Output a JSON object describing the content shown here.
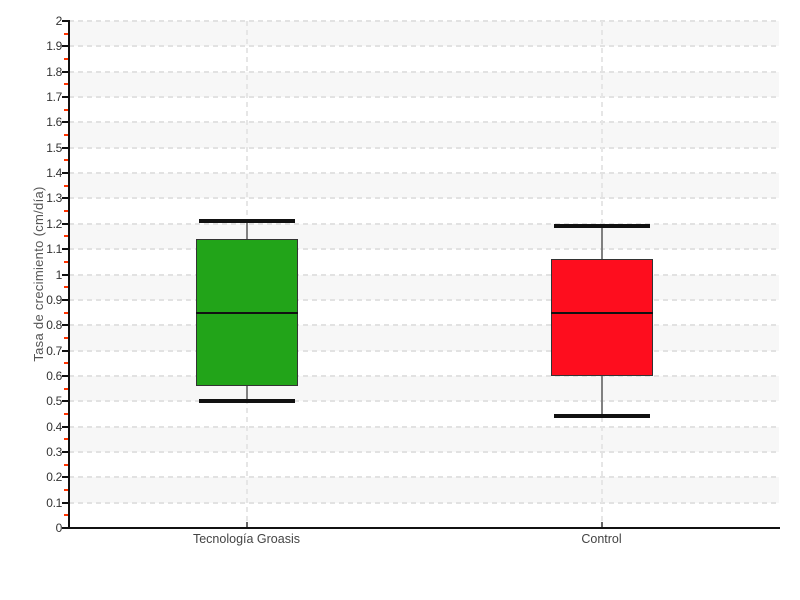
{
  "chart_data": {
    "type": "boxplot",
    "title": "",
    "xlabel": "",
    "ylabel": "Tasa de crecimiento (cm/día)",
    "categories": [
      "Tecnología Groasis",
      "Control"
    ],
    "ylim": [
      0,
      2
    ],
    "y_major_step": 0.1,
    "y_minor_step": 0.05,
    "y_tick_labels": [
      "0",
      "0.1",
      "0.2",
      "0.3",
      "0.4",
      "0.5",
      "0.6",
      "0.7",
      "0.8",
      "0.9",
      "1",
      "1.1",
      "1.2",
      "1.3",
      "1.4",
      "1.5",
      "1.6",
      "1.7",
      "1.8",
      "1.9",
      "2"
    ],
    "grid": "horizontal dashed gridlines every 0.1 with alternating light-gray bands; vertical dashed line at each category center",
    "legend": "none",
    "series": [
      {
        "name": "Tecnología Groasis",
        "min": 0.5,
        "q1": 0.56,
        "median": 0.85,
        "q3": 1.14,
        "max": 1.21,
        "fill": "#22a419"
      },
      {
        "name": "Control",
        "min": 0.44,
        "q1": 0.6,
        "median": 0.85,
        "q3": 1.06,
        "max": 1.19,
        "fill": "#fe0d1e"
      }
    ]
  },
  "colors": {
    "background": "#ffffff",
    "band": "#f7f7f7",
    "grid": "#e2e2e2",
    "axis": "#111111",
    "tick_label": "#333333",
    "minor_tick": "#ff3300",
    "whisker_stem": "#808080",
    "whisker_cap": "#111111",
    "box_border": "#333333",
    "median_line": "#111111"
  }
}
